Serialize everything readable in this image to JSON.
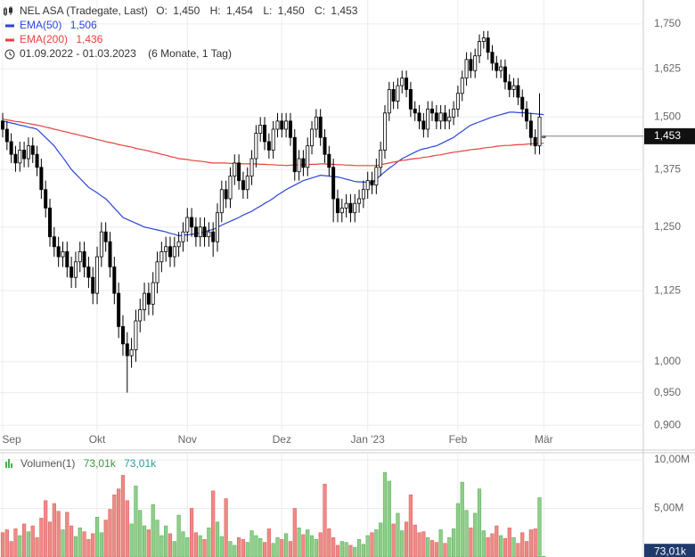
{
  "chart_data": [
    {
      "type": "candlestick",
      "title": "NEL ASA (Tradegate, Last)",
      "quote": [
        {
          "label": "O:",
          "value": "1,450"
        },
        {
          "label": "H:",
          "value": "1,454"
        },
        {
          "label": "L:",
          "value": "1,450"
        },
        {
          "label": "C:",
          "value": "1,453"
        }
      ],
      "date_range": "01.09.2022 - 01.03.2023",
      "period": "(6 Monate, 1 Tag)",
      "log_scale": true,
      "grid": true,
      "up_color": "#ffffff",
      "down_color": "#000000",
      "ylim": [
        0.891,
        1.821
      ],
      "yticks": [
        {
          "value": 0.9,
          "label": "0,900"
        },
        {
          "value": 0.95,
          "label": "0,950"
        },
        {
          "value": 1.0,
          "label": "1,000"
        },
        {
          "value": 1.125,
          "label": "1,125"
        },
        {
          "value": 1.25,
          "label": "1,250"
        },
        {
          "value": 1.375,
          "label": "1,375"
        },
        {
          "value": 1.5,
          "label": "1,500"
        },
        {
          "value": 1.625,
          "label": "1,625"
        },
        {
          "value": 1.75,
          "label": "1,750"
        }
      ],
      "categories": [
        "Sep",
        null,
        null,
        null,
        null,
        null,
        null,
        null,
        null,
        null,
        null,
        null,
        null,
        null,
        null,
        null,
        null,
        null,
        null,
        null,
        null,
        null,
        "Okt",
        null,
        null,
        null,
        null,
        null,
        null,
        null,
        null,
        null,
        null,
        null,
        null,
        null,
        null,
        null,
        null,
        null,
        null,
        null,
        null,
        "Nov",
        null,
        null,
        null,
        null,
        null,
        null,
        null,
        null,
        null,
        null,
        null,
        null,
        null,
        null,
        null,
        null,
        null,
        null,
        null,
        null,
        null,
        "Dez",
        null,
        null,
        null,
        null,
        null,
        null,
        null,
        null,
        null,
        null,
        null,
        null,
        null,
        null,
        null,
        null,
        null,
        null,
        null,
        "Jan '23",
        null,
        null,
        null,
        null,
        null,
        null,
        null,
        null,
        null,
        null,
        null,
        null,
        null,
        null,
        null,
        null,
        null,
        null,
        null,
        null,
        "Feb",
        null,
        null,
        null,
        null,
        null,
        null,
        null,
        null,
        null,
        null,
        null,
        null,
        null,
        null,
        null,
        null,
        null,
        null,
        null,
        "Mär"
      ],
      "open": [
        1.49,
        1.47,
        1.44,
        1.41,
        1.39,
        1.42,
        1.4,
        1.43,
        1.41,
        1.38,
        1.33,
        1.29,
        1.23,
        1.21,
        1.19,
        1.2,
        1.17,
        1.15,
        1.18,
        1.2,
        1.17,
        1.15,
        1.12,
        1.19,
        1.24,
        1.22,
        1.17,
        1.12,
        1.06,
        1.03,
        1.01,
        1.02,
        1.07,
        1.09,
        1.12,
        1.1,
        1.14,
        1.18,
        1.2,
        1.21,
        1.19,
        1.21,
        1.22,
        1.24,
        1.27,
        1.25,
        1.23,
        1.25,
        1.23,
        1.24,
        1.22,
        1.28,
        1.33,
        1.31,
        1.36,
        1.39,
        1.35,
        1.33,
        1.36,
        1.4,
        1.46,
        1.48,
        1.44,
        1.42,
        1.47,
        1.49,
        1.47,
        1.49,
        1.45,
        1.37,
        1.4,
        1.38,
        1.43,
        1.47,
        1.5,
        1.45,
        1.41,
        1.38,
        1.31,
        1.28,
        1.29,
        1.3,
        1.28,
        1.3,
        1.31,
        1.33,
        1.35,
        1.34,
        1.38,
        1.42,
        1.51,
        1.57,
        1.54,
        1.58,
        1.6,
        1.57,
        1.52,
        1.51,
        1.49,
        1.47,
        1.52,
        1.51,
        1.49,
        1.51,
        1.49,
        1.5,
        1.52,
        1.56,
        1.6,
        1.65,
        1.62,
        1.66,
        1.7,
        1.71,
        1.67,
        1.64,
        1.62,
        1.63,
        1.59,
        1.57,
        1.58,
        1.55,
        1.52,
        1.49,
        1.45,
        1.43,
        1.45
      ],
      "high": [
        1.51,
        1.49,
        1.46,
        1.43,
        1.44,
        1.44,
        1.45,
        1.45,
        1.43,
        1.4,
        1.35,
        1.31,
        1.25,
        1.23,
        1.22,
        1.22,
        1.19,
        1.2,
        1.22,
        1.22,
        1.19,
        1.17,
        1.21,
        1.26,
        1.26,
        1.24,
        1.19,
        1.14,
        1.08,
        1.05,
        1.04,
        1.09,
        1.11,
        1.14,
        1.14,
        1.16,
        1.2,
        1.22,
        1.23,
        1.23,
        1.23,
        1.24,
        1.26,
        1.29,
        1.29,
        1.27,
        1.27,
        1.27,
        1.26,
        1.26,
        1.3,
        1.35,
        1.35,
        1.38,
        1.41,
        1.41,
        1.37,
        1.38,
        1.42,
        1.48,
        1.5,
        1.5,
        1.46,
        1.49,
        1.51,
        1.51,
        1.51,
        1.51,
        1.47,
        1.42,
        1.42,
        1.45,
        1.49,
        1.52,
        1.52,
        1.47,
        1.43,
        1.4,
        1.33,
        1.31,
        1.32,
        1.32,
        1.32,
        1.33,
        1.35,
        1.37,
        1.37,
        1.4,
        1.44,
        1.53,
        1.59,
        1.59,
        1.6,
        1.62,
        1.62,
        1.59,
        1.54,
        1.53,
        1.51,
        1.54,
        1.54,
        1.53,
        1.53,
        1.53,
        1.52,
        1.54,
        1.58,
        1.62,
        1.67,
        1.67,
        1.68,
        1.72,
        1.73,
        1.73,
        1.69,
        1.66,
        1.65,
        1.65,
        1.61,
        1.6,
        1.6,
        1.57,
        1.54,
        1.51,
        1.47,
        1.56,
        1.454
      ],
      "low": [
        1.45,
        1.42,
        1.39,
        1.37,
        1.37,
        1.38,
        1.38,
        1.39,
        1.36,
        1.31,
        1.27,
        1.21,
        1.19,
        1.17,
        1.17,
        1.15,
        1.13,
        1.13,
        1.16,
        1.15,
        1.13,
        1.1,
        1.1,
        1.17,
        1.2,
        1.15,
        1.1,
        1.04,
        1.01,
        0.95,
        0.99,
        1.0,
        1.05,
        1.07,
        1.08,
        1.08,
        1.12,
        1.16,
        1.18,
        1.17,
        1.17,
        1.19,
        1.2,
        1.22,
        1.23,
        1.21,
        1.21,
        1.21,
        1.21,
        1.19,
        1.2,
        1.26,
        1.29,
        1.29,
        1.34,
        1.33,
        1.31,
        1.31,
        1.34,
        1.38,
        1.44,
        1.42,
        1.4,
        1.4,
        1.45,
        1.45,
        1.45,
        1.43,
        1.35,
        1.35,
        1.36,
        1.36,
        1.41,
        1.45,
        1.43,
        1.39,
        1.36,
        1.26,
        1.26,
        1.26,
        1.27,
        1.26,
        1.26,
        1.28,
        1.29,
        1.31,
        1.32,
        1.32,
        1.36,
        1.4,
        1.49,
        1.52,
        1.52,
        1.56,
        1.55,
        1.5,
        1.49,
        1.47,
        1.45,
        1.45,
        1.49,
        1.47,
        1.47,
        1.47,
        1.47,
        1.48,
        1.5,
        1.54,
        1.58,
        1.6,
        1.6,
        1.64,
        1.68,
        1.65,
        1.62,
        1.6,
        1.6,
        1.57,
        1.55,
        1.55,
        1.53,
        1.5,
        1.47,
        1.43,
        1.41,
        1.41,
        1.45
      ],
      "close": [
        1.47,
        1.44,
        1.41,
        1.39,
        1.42,
        1.4,
        1.43,
        1.41,
        1.38,
        1.33,
        1.29,
        1.23,
        1.21,
        1.19,
        1.2,
        1.17,
        1.15,
        1.18,
        1.2,
        1.17,
        1.15,
        1.12,
        1.19,
        1.24,
        1.22,
        1.17,
        1.12,
        1.06,
        1.03,
        1.01,
        1.02,
        1.07,
        1.09,
        1.12,
        1.1,
        1.14,
        1.18,
        1.2,
        1.21,
        1.19,
        1.21,
        1.22,
        1.24,
        1.27,
        1.25,
        1.23,
        1.25,
        1.23,
        1.24,
        1.22,
        1.28,
        1.33,
        1.31,
        1.36,
        1.39,
        1.35,
        1.33,
        1.36,
        1.4,
        1.46,
        1.48,
        1.44,
        1.42,
        1.47,
        1.49,
        1.47,
        1.49,
        1.45,
        1.37,
        1.4,
        1.38,
        1.43,
        1.47,
        1.5,
        1.45,
        1.41,
        1.38,
        1.31,
        1.28,
        1.29,
        1.3,
        1.28,
        1.3,
        1.31,
        1.33,
        1.35,
        1.34,
        1.38,
        1.42,
        1.51,
        1.57,
        1.54,
        1.58,
        1.6,
        1.57,
        1.52,
        1.51,
        1.49,
        1.47,
        1.52,
        1.51,
        1.49,
        1.51,
        1.49,
        1.5,
        1.52,
        1.56,
        1.6,
        1.65,
        1.62,
        1.66,
        1.7,
        1.71,
        1.67,
        1.64,
        1.62,
        1.63,
        1.59,
        1.57,
        1.58,
        1.55,
        1.52,
        1.49,
        1.45,
        1.43,
        1.5,
        1.453
      ],
      "series": [
        {
          "name": "EMA(50)",
          "last_label": "1,506",
          "color": "#2b45d8",
          "values": [
            1.49,
            1.488,
            1.485,
            1.483,
            1.48,
            1.478,
            1.475,
            1.473,
            1.47,
            1.46,
            1.45,
            1.44,
            1.43,
            1.416,
            1.403,
            1.389,
            1.375,
            1.365,
            1.355,
            1.345,
            1.335,
            1.329,
            1.323,
            1.316,
            1.31,
            1.3,
            1.29,
            1.28,
            1.27,
            1.266,
            1.262,
            1.258,
            1.254,
            1.25,
            1.248,
            1.246,
            1.244,
            1.242,
            1.24,
            1.237,
            1.235,
            1.232,
            1.233,
            1.234,
            1.235,
            1.236,
            1.238,
            1.24,
            1.243,
            1.245,
            1.249,
            1.254,
            1.258,
            1.262,
            1.266,
            1.27,
            1.275,
            1.279,
            1.283,
            1.289,
            1.294,
            1.3,
            1.305,
            1.311,
            1.318,
            1.324,
            1.33,
            1.335,
            1.34,
            1.345,
            1.35,
            1.353,
            1.356,
            1.359,
            1.362,
            1.361,
            1.36,
            1.359,
            1.358,
            1.356,
            1.353,
            1.351,
            1.348,
            1.347,
            1.347,
            1.346,
            1.345,
            1.353,
            1.362,
            1.37,
            1.378,
            1.385,
            1.393,
            1.4,
            1.405,
            1.41,
            1.415,
            1.42,
            1.423,
            1.425,
            1.428,
            1.43,
            1.435,
            1.44,
            1.445,
            1.45,
            1.458,
            1.465,
            1.473,
            1.48,
            1.484,
            1.488,
            1.492,
            1.496,
            1.5,
            1.503,
            1.506,
            1.509,
            1.512,
            1.512,
            1.511,
            1.511,
            1.51,
            1.509,
            1.508,
            1.507,
            1.506
          ]
        },
        {
          "name": "EMA(200)",
          "last_label": "1,436",
          "color": "#e8413c",
          "values": [
            1.495,
            1.493,
            1.491,
            1.489,
            1.488,
            1.486,
            1.484,
            1.482,
            1.48,
            1.478,
            1.475,
            1.473,
            1.47,
            1.468,
            1.465,
            1.463,
            1.46,
            1.458,
            1.455,
            1.453,
            1.45,
            1.448,
            1.445,
            1.443,
            1.44,
            1.438,
            1.436,
            1.433,
            1.431,
            1.429,
            1.427,
            1.424,
            1.422,
            1.42,
            1.418,
            1.415,
            1.413,
            1.41,
            1.408,
            1.405,
            1.403,
            1.4,
            1.399,
            1.398,
            1.396,
            1.395,
            1.394,
            1.393,
            1.391,
            1.39,
            1.39,
            1.39,
            1.39,
            1.389,
            1.389,
            1.389,
            1.388,
            1.388,
            1.388,
            1.388,
            1.387,
            1.387,
            1.386,
            1.386,
            1.385,
            1.385,
            1.384,
            1.385,
            1.385,
            1.386,
            1.386,
            1.386,
            1.387,
            1.387,
            1.388,
            1.388,
            1.387,
            1.387,
            1.386,
            1.386,
            1.385,
            1.385,
            1.384,
            1.384,
            1.384,
            1.384,
            1.384,
            1.384,
            1.386,
            1.388,
            1.39,
            1.392,
            1.394,
            1.396,
            1.397,
            1.399,
            1.4,
            1.401,
            1.403,
            1.404,
            1.406,
            1.408,
            1.409,
            1.411,
            1.413,
            1.415,
            1.416,
            1.418,
            1.419,
            1.421,
            1.422,
            1.423,
            1.425,
            1.426,
            1.427,
            1.429,
            1.43,
            1.431,
            1.431,
            1.432,
            1.433,
            1.433,
            1.434,
            1.435,
            1.435,
            1.436,
            1.436
          ]
        }
      ]
    },
    {
      "type": "bar",
      "title": "Volumen(1)",
      "legend_values": [
        "73,01k",
        "73,01k"
      ],
      "up_color": "#8fcf8a",
      "down_color": "#ef8a86",
      "ylim": [
        0,
        10730000
      ],
      "yticks": [
        {
          "value": 5000000,
          "label": "5,00M"
        },
        {
          "value": 10000000,
          "label": "10,00M"
        }
      ],
      "values": [
        2500000,
        2800000,
        1600000,
        2900000,
        2200000,
        3400000,
        2600000,
        3200000,
        2000000,
        4000000,
        5800000,
        3600000,
        5500000,
        4700000,
        2800000,
        4600000,
        3200000,
        2100000,
        3000000,
        2600000,
        1800000,
        2400000,
        4100000,
        2500000,
        3800000,
        4900000,
        6400000,
        7000000,
        8400000,
        5800000,
        3400000,
        7300000,
        4800000,
        3200000,
        2800000,
        5400000,
        3800000,
        2200000,
        3200000,
        2400000,
        1600000,
        4300000,
        2600000,
        2000000,
        5000000,
        2500000,
        2200000,
        1800000,
        3000000,
        6800000,
        3600000,
        2100000,
        6000000,
        1600000,
        1200000,
        2000000,
        1800000,
        1500000,
        2700000,
        2200000,
        1900000,
        1500000,
        2900000,
        1400000,
        2000000,
        1800000,
        2400000,
        1600000,
        5000000,
        3000000,
        2300000,
        2800000,
        2200000,
        1800000,
        2500000,
        7500000,
        2900000,
        2000000,
        1200000,
        1600000,
        1500000,
        1200000,
        1000000,
        1800000,
        1300000,
        2200000,
        2500000,
        2800000,
        3500000,
        8700000,
        7800000,
        3400000,
        4500000,
        2700000,
        3600000,
        6400000,
        3300000,
        2500000,
        2600000,
        2000000,
        1700000,
        1500000,
        2800000,
        1400000,
        2000000,
        2900000,
        5500000,
        7700000,
        4800000,
        3000000,
        4500000,
        7000000,
        2700000,
        2000000,
        2400000,
        3200000,
        2200000,
        1900000,
        3000000,
        2000000,
        1400000,
        2500000,
        1600000,
        2800000,
        2900000,
        6100000,
        73010
      ]
    }
  ]
}
